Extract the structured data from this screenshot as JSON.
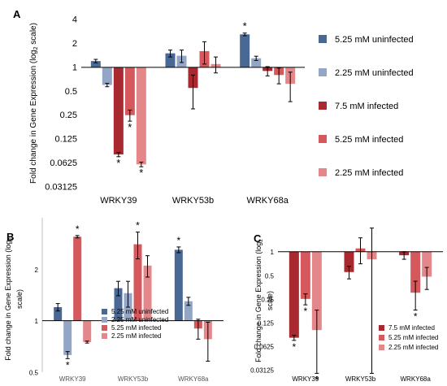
{
  "colors": {
    "5.25 mM uninfected": "#4a6894",
    "2.25 mM uninfected": "#93a6c5",
    "7.5 mM infected": "#a8292f",
    "5.25 mM infected": "#d5585c",
    "2.25 mM infected": "#e3878b"
  },
  "chart_data": [
    {
      "panel": "A",
      "type": "bar",
      "log_base": 2,
      "ylabel": "Fold change in Gene Expression (log2 scale)",
      "ytick_labels": [
        "4",
        "2",
        "1",
        "0.5",
        "0.25",
        "0.125",
        "0.0625",
        "0.03125"
      ],
      "ytick_values": [
        4,
        2,
        1,
        0.5,
        0.25,
        0.125,
        0.0625,
        0.03125
      ],
      "ylim": [
        0.03125,
        4
      ],
      "categories": [
        "WRKY39",
        "WRKY53b",
        "WRKY68a"
      ],
      "legend": "right",
      "series": [
        {
          "name": "5.25 mM uninfected",
          "values": [
            1.2,
            1.5,
            2.6
          ],
          "err": [
            0.06,
            0.15,
            0.1
          ],
          "sig": [
            false,
            false,
            true
          ]
        },
        {
          "name": "2.25 mM uninfected",
          "values": [
            0.6,
            1.4,
            1.3
          ],
          "err": [
            0.03,
            0.25,
            0.08
          ],
          "sig": [
            false,
            false,
            false
          ]
        },
        {
          "name": "7.5 mM infected",
          "values": [
            0.08,
            0.55,
            0.9
          ],
          "err": [
            0.005,
            0.25,
            0.12
          ],
          "sig": [
            true,
            false,
            false
          ]
        },
        {
          "name": "5.25 mM infected",
          "values": [
            0.25,
            1.6,
            0.8
          ],
          "err": [
            0.04,
            0.5,
            0.18
          ],
          "sig": [
            true,
            false,
            false
          ]
        },
        {
          "name": "2.25 mM infected",
          "values": [
            0.06,
            1.1,
            0.62
          ],
          "err": [
            0.004,
            0.25,
            0.25
          ],
          "sig": [
            true,
            false,
            false
          ]
        }
      ]
    },
    {
      "panel": "B",
      "type": "bar",
      "log_base": 2,
      "ylabel": "Fold change in Gene Expression (log2 scale)",
      "ytick_labels": [
        "2",
        "1",
        "0.5"
      ],
      "ytick_values": [
        2,
        1,
        0.5
      ],
      "ylim": [
        0.5,
        4
      ],
      "categories": [
        "WRKY39",
        "WRKY53b",
        "WRKY68a"
      ],
      "legend": "bottom-center",
      "series": [
        {
          "name": "5.25 mM uninfected",
          "values": [
            1.2,
            1.55,
            2.6
          ],
          "err": [
            0.06,
            0.15,
            0.1
          ],
          "sig": [
            false,
            false,
            true
          ]
        },
        {
          "name": "2.25 mM uninfected",
          "values": [
            0.63,
            1.45,
            1.3
          ],
          "err": [
            0.03,
            0.25,
            0.07
          ],
          "sig": [
            true,
            false,
            false
          ]
        },
        {
          "name": "5.25 mM infected",
          "values": [
            3.1,
            2.8,
            0.9
          ],
          "err": [
            0.05,
            0.5,
            0.12
          ],
          "sig": [
            true,
            true,
            false
          ]
        },
        {
          "name": "2.25 mM infected",
          "values": [
            0.75,
            2.1,
            0.78
          ],
          "err": [
            0.01,
            0.3,
            0.2
          ],
          "sig": [
            false,
            false,
            false
          ]
        }
      ]
    },
    {
      "panel": "C",
      "type": "bar",
      "log_base": 2,
      "ylabel": "Fold change in Gene Expression (log2 scale)",
      "ytick_labels": [
        "1",
        "0.5",
        "0.25",
        "0.125",
        "0.0625",
        "0.03125"
      ],
      "ytick_values": [
        1,
        0.5,
        0.25,
        0.125,
        0.0625,
        0.03125
      ],
      "ylim": [
        0.03125,
        1.6
      ],
      "categories": [
        "WRKY39",
        "WRKY53b",
        "WRKY68a"
      ],
      "legend": "bottom-right",
      "series": [
        {
          "name": "7.5 mM infected",
          "values": [
            0.08,
            0.55,
            0.9
          ],
          "err": [
            0.006,
            0.1,
            0.1
          ],
          "sig": [
            true,
            false,
            false
          ]
        },
        {
          "name": "5.25 mM infected",
          "values": [
            0.25,
            1.1,
            0.3
          ],
          "err": [
            0.04,
            0.4,
            0.12
          ],
          "sig": [
            true,
            false,
            true
          ]
        },
        {
          "name": "2.25 mM infected",
          "values": [
            0.1,
            0.8,
            0.48
          ],
          "err": [
            0.08,
            1.2,
            0.15
          ],
          "sig": [
            true,
            false,
            false
          ]
        }
      ]
    }
  ],
  "panel_labels": [
    "A",
    "B",
    "C"
  ],
  "sig_marker": "*"
}
